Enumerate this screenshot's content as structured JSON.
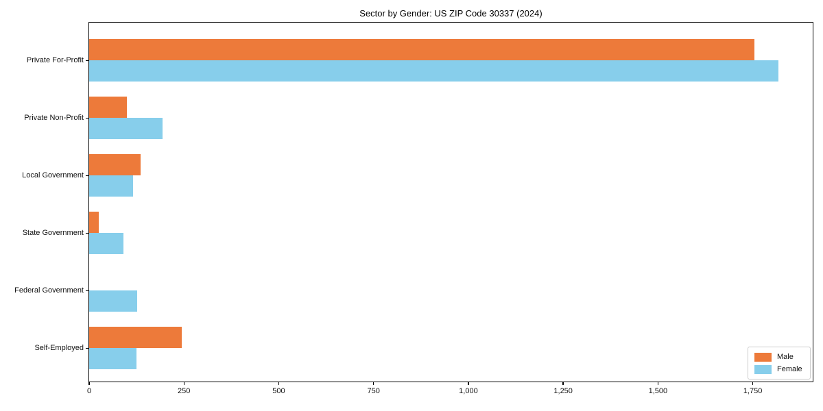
{
  "chart_data": {
    "type": "bar",
    "orientation": "horizontal",
    "title": "Sector by Gender: US ZIP Code 30337 (2024)",
    "categories": [
      "Private For-Profit",
      "Private Non-Profit",
      "Local Government",
      "State Government",
      "Federal Government",
      "Self-Employed"
    ],
    "series": [
      {
        "name": "Male",
        "color": "#ED7A3A",
        "values": [
          1755,
          100,
          136,
          25,
          0,
          244
        ]
      },
      {
        "name": "Female",
        "color": "#87CEEB",
        "values": [
          1818,
          193,
          116,
          90,
          127,
          125
        ]
      }
    ],
    "xlabel": "",
    "ylabel": "",
    "xlim": [
      0,
      1908
    ],
    "xticks": [
      0,
      250,
      500,
      750,
      1000,
      1250,
      1500,
      1750
    ],
    "xtick_labels": [
      "0",
      "250",
      "500",
      "750",
      "1,000",
      "1,250",
      "1,500",
      "1,750"
    ],
    "grid": false,
    "legend_position": "lower right"
  },
  "legend": {
    "items": [
      {
        "label": "Male",
        "color": "#ED7A3A"
      },
      {
        "label": "Female",
        "color": "#87CEEB"
      }
    ]
  }
}
